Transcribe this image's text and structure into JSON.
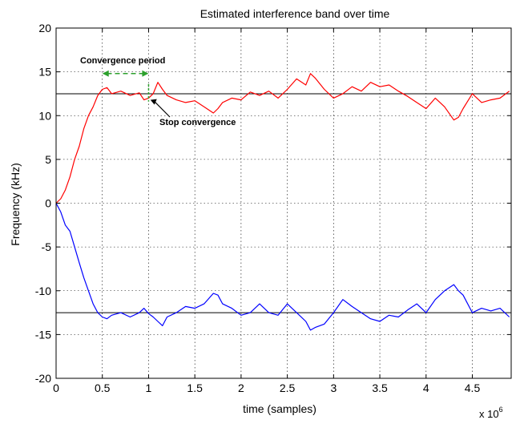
{
  "chart_data": {
    "type": "line",
    "title": "Estimated interference band over time",
    "xlabel": "time (samples)",
    "ylabel": "Frequency (kHz)",
    "x_multiplier": "x 10",
    "x_multiplier_exp": "6",
    "xlim": [
      0,
      4.92
    ],
    "ylim": [
      -20,
      20
    ],
    "xticks": [
      0,
      0.5,
      1,
      1.5,
      2,
      2.5,
      3,
      3.5,
      4,
      4.5,
      5
    ],
    "yticks": [
      -20,
      -15,
      -10,
      -5,
      0,
      5,
      10,
      15,
      20
    ],
    "grid": true,
    "series": [
      {
        "color": "#ff0000",
        "x": [
          0,
          0.05,
          0.1,
          0.15,
          0.2,
          0.25,
          0.3,
          0.35,
          0.4,
          0.45,
          0.5,
          0.55,
          0.6,
          0.7,
          0.8,
          0.9,
          0.95,
          1.0,
          1.05,
          1.1,
          1.15,
          1.2,
          1.3,
          1.4,
          1.5,
          1.6,
          1.7,
          1.75,
          1.8,
          1.9,
          2.0,
          2.1,
          2.2,
          2.3,
          2.4,
          2.5,
          2.6,
          2.7,
          2.75,
          2.8,
          2.9,
          3.0,
          3.1,
          3.2,
          3.3,
          3.4,
          3.5,
          3.6,
          3.7,
          3.8,
          3.9,
          4.0,
          4.1,
          4.2,
          4.3,
          4.35,
          4.4,
          4.5,
          4.6,
          4.7,
          4.8,
          4.9
        ],
        "values": [
          0,
          0.5,
          1.5,
          3,
          5,
          6.5,
          8.5,
          10,
          11,
          12.3,
          13,
          13.2,
          12.5,
          12.8,
          12.3,
          12.6,
          11.8,
          12.0,
          12.5,
          13.8,
          13.0,
          12.3,
          11.8,
          11.5,
          11.7,
          11.0,
          10.3,
          10.8,
          11.5,
          12.0,
          11.8,
          12.7,
          12.3,
          12.8,
          12.0,
          13.0,
          14.2,
          13.5,
          14.8,
          14.3,
          13.0,
          12.0,
          12.5,
          13.3,
          12.8,
          13.8,
          13.3,
          13.5,
          12.8,
          12.2,
          11.5,
          10.8,
          12.0,
          11.0,
          9.5,
          9.8,
          10.8,
          12.5,
          11.5,
          11.8,
          12.0,
          12.8
        ]
      },
      {
        "color": "#0000ff",
        "x": [
          0,
          0.05,
          0.1,
          0.15,
          0.2,
          0.25,
          0.3,
          0.35,
          0.4,
          0.45,
          0.5,
          0.55,
          0.6,
          0.7,
          0.8,
          0.9,
          0.95,
          1.0,
          1.05,
          1.1,
          1.15,
          1.2,
          1.3,
          1.4,
          1.5,
          1.6,
          1.7,
          1.75,
          1.8,
          1.9,
          2.0,
          2.1,
          2.2,
          2.3,
          2.4,
          2.5,
          2.6,
          2.7,
          2.75,
          2.8,
          2.9,
          3.0,
          3.1,
          3.2,
          3.3,
          3.4,
          3.5,
          3.6,
          3.7,
          3.8,
          3.9,
          4.0,
          4.1,
          4.2,
          4.3,
          4.35,
          4.4,
          4.5,
          4.6,
          4.7,
          4.8,
          4.9
        ],
        "values": [
          0,
          -1.0,
          -2.5,
          -3.2,
          -5,
          -6.8,
          -8.5,
          -10,
          -11.5,
          -12.5,
          -13.0,
          -13.2,
          -12.8,
          -12.5,
          -13.0,
          -12.5,
          -12.0,
          -12.6,
          -13.0,
          -13.5,
          -14.0,
          -13.0,
          -12.5,
          -11.8,
          -12.0,
          -11.5,
          -10.3,
          -10.5,
          -11.5,
          -12.0,
          -12.8,
          -12.5,
          -11.5,
          -12.5,
          -12.8,
          -11.5,
          -12.5,
          -13.5,
          -14.5,
          -14.2,
          -13.8,
          -12.5,
          -11.0,
          -11.8,
          -12.5,
          -13.2,
          -13.5,
          -12.8,
          -13.0,
          -12.2,
          -11.5,
          -12.5,
          -11.0,
          -10.0,
          -9.3,
          -10.0,
          -10.5,
          -12.5,
          -12.0,
          -12.3,
          -12.0,
          -13.0
        ]
      }
    ],
    "hlines": [
      12.5,
      -12.5
    ],
    "annotations": [
      {
        "text": "Convergence period"
      },
      {
        "text": "Stop convergence"
      }
    ]
  }
}
